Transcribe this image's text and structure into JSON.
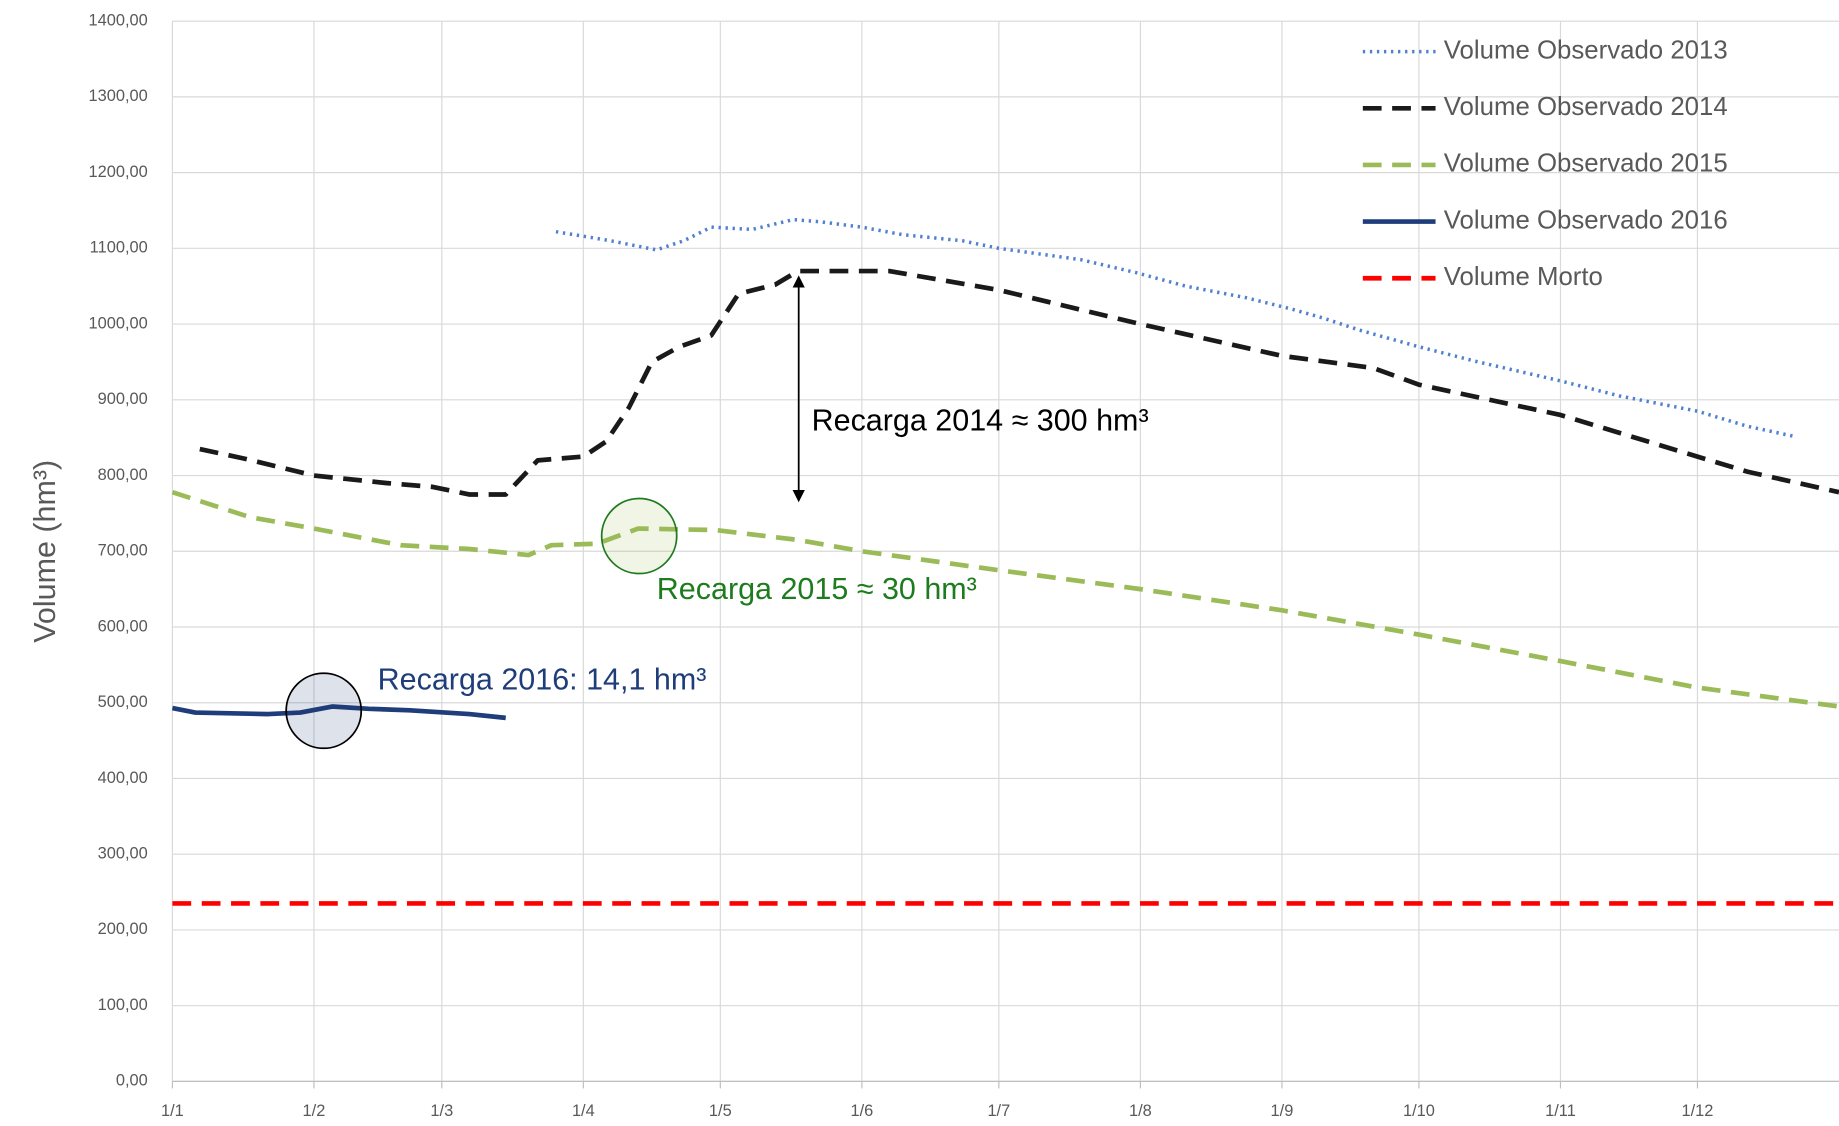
{
  "chart_data": {
    "type": "line",
    "y_label": "Volume (hm³)",
    "annotations": [
      "Recarga 2014 ≈ 300 hm³",
      "Recarga 2015 ≈ 30 hm³",
      "Recarga 2016: 14,1 hm³"
    ],
    "xlim": [
      0,
      365
    ],
    "xticks": [
      {
        "value": 0,
        "label": "1/1"
      },
      {
        "value": 31,
        "label": "1/2"
      },
      {
        "value": 59,
        "label": "1/3"
      },
      {
        "value": 90,
        "label": "1/4"
      },
      {
        "value": 120,
        "label": "1/5"
      },
      {
        "value": 151,
        "label": "1/6"
      },
      {
        "value": 181,
        "label": "1/7"
      },
      {
        "value": 212,
        "label": "1/8"
      },
      {
        "value": 243,
        "label": "1/9"
      },
      {
        "value": 273,
        "label": "1/10"
      },
      {
        "value": 304,
        "label": "1/11"
      },
      {
        "value": 334,
        "label": "1/12"
      }
    ],
    "ylim": [
      0,
      1400
    ],
    "yticks": [
      {
        "value": 0,
        "label": "0,00"
      },
      {
        "value": 100,
        "label": "100,00"
      },
      {
        "value": 200,
        "label": "200,00"
      },
      {
        "value": 300,
        "label": "300,00"
      },
      {
        "value": 400,
        "label": "400,00"
      },
      {
        "value": 500,
        "label": "500,00"
      },
      {
        "value": 600,
        "label": "600,00"
      },
      {
        "value": 700,
        "label": "700,00"
      },
      {
        "value": 800,
        "label": "800,00"
      },
      {
        "value": 900,
        "label": "900,00"
      },
      {
        "value": 1000,
        "label": "1000,00"
      },
      {
        "value": 1100,
        "label": "1100,00"
      },
      {
        "value": 1200,
        "label": "1200,00"
      },
      {
        "value": 1300,
        "label": "1300,00"
      },
      {
        "value": 1400,
        "label": "1400,00"
      }
    ],
    "grid": true,
    "legend": "top-right",
    "series": [
      {
        "name": "Volume Observado 2013",
        "color": "#4f81d0",
        "dash": "dotted",
        "x": [
          84,
          96,
          106,
          112,
          118,
          127,
          136,
          142,
          151,
          160,
          173,
          181,
          199,
          211,
          222,
          235,
          245,
          252,
          260,
          273,
          286,
          304,
          317,
          334,
          345,
          355
        ],
        "values": [
          1122,
          1110,
          1098,
          1110,
          1128,
          1125,
          1138,
          1135,
          1128,
          1118,
          1110,
          1100,
          1085,
          1068,
          1050,
          1035,
          1020,
          1008,
          992,
          970,
          950,
          925,
          905,
          885,
          865,
          852
        ]
      },
      {
        "name": "Volume Observado 2014",
        "color": "#1a1a1a",
        "dash": "dashed",
        "x": [
          6,
          16,
          31,
          47,
          57,
          65,
          73,
          80,
          90,
          95,
          100,
          105,
          111,
          118,
          124,
          132,
          137,
          151,
          157,
          181,
          212,
          243,
          263,
          273,
          304,
          334,
          345,
          365
        ],
        "values": [
          835,
          822,
          800,
          790,
          785,
          775,
          775,
          820,
          825,
          845,
          890,
          950,
          970,
          985,
          1040,
          1052,
          1070,
          1070,
          1070,
          1045,
          1000,
          958,
          942,
          920,
          880,
          825,
          805,
          778
        ]
      },
      {
        "name": "Volume Observado 2015",
        "color": "#9bbb59",
        "dash": "dashed",
        "x": [
          0,
          17,
          31,
          50,
          65,
          78,
          83,
          93,
          102,
          119,
          137,
          151,
          181,
          212,
          243,
          273,
          304,
          334,
          365
        ],
        "values": [
          778,
          745,
          730,
          708,
          703,
          695,
          708,
          710,
          730,
          728,
          715,
          700,
          675,
          650,
          622,
          590,
          555,
          520,
          495
        ]
      },
      {
        "name": "Volume Observado 2016",
        "color": "#1f3d7a",
        "dash": "solid",
        "x": [
          0,
          5,
          21,
          28,
          35,
          43,
          52,
          65,
          73
        ],
        "values": [
          493,
          487,
          485,
          487,
          495,
          492,
          490,
          485,
          480
        ]
      },
      {
        "name": "Volume Morto",
        "color": "#ff0000",
        "dash": "dashed",
        "x": [
          0,
          365
        ],
        "values": [
          235,
          235
        ]
      }
    ]
  }
}
